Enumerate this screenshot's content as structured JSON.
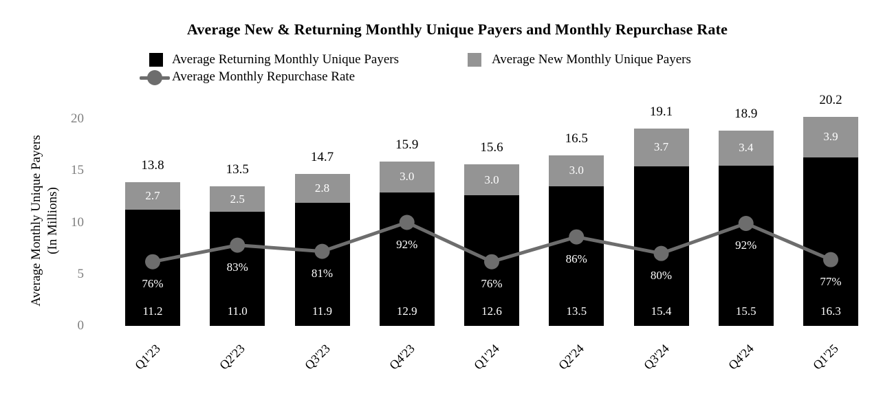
{
  "title": "Average New & Returning Monthly Unique Payers and Monthly Repurchase Rate",
  "legend": {
    "position": "top-left, two rows",
    "items": [
      {
        "label": "Average Returning Monthly Unique Payers",
        "swatch": "black-square"
      },
      {
        "label": "Average New Monthly Unique Payers",
        "swatch": "gray-square"
      },
      {
        "label": "Average Monthly Repurchase Rate",
        "swatch": "gray-line-with-circle-marker"
      }
    ]
  },
  "y_axis": {
    "title_line1": "Average Monthly Unique Payers",
    "title_line2": "(In Millions)",
    "ticks": [
      20,
      15,
      10,
      5,
      0
    ]
  },
  "colors": {
    "returning_bar": "#000000",
    "new_bar": "#949494",
    "line": "#6d6d6d",
    "tick_text": "#7f7f7f",
    "on_bar_text": "#ffffff",
    "text": "#000000",
    "background": "#ffffff"
  },
  "chart_data": {
    "type": "bar",
    "subtype": "stacked-bars-with-line-overlay",
    "title": "Average New & Returning Monthly Unique Payers and Monthly Repurchase Rate",
    "xlabel": "",
    "ylabel": "Average Monthly Unique Payers (In Millions)",
    "ylim": [
      0,
      20
    ],
    "grid": false,
    "legend_position": "top",
    "categories": [
      "Q1'23",
      "Q2'23",
      "Q3'23",
      "Q4'23",
      "Q1'24",
      "Q2'24",
      "Q3'24",
      "Q4'24",
      "Q1'25"
    ],
    "series": [
      {
        "name": "Average Returning Monthly Unique Payers",
        "type": "bar-stack-bottom",
        "values": [
          11.2,
          11.0,
          11.9,
          12.9,
          12.6,
          13.5,
          15.4,
          15.5,
          16.3
        ],
        "labels": [
          "11.2",
          "11.0",
          "11.9",
          "12.9",
          "12.6",
          "13.5",
          "15.4",
          "15.5",
          "16.3"
        ]
      },
      {
        "name": "Average New Monthly Unique Payers",
        "type": "bar-stack-top",
        "values": [
          2.7,
          2.5,
          2.8,
          3.0,
          3.0,
          3.0,
          3.7,
          3.4,
          3.9
        ],
        "labels": [
          "2.7",
          "2.5",
          "2.8",
          "3.0",
          "3.0",
          "3.0",
          "3.7",
          "3.4",
          "3.9"
        ]
      },
      {
        "name": "Average Monthly Repurchase Rate",
        "type": "line",
        "values_pct": [
          76,
          83,
          81,
          92,
          76,
          86,
          80,
          92,
          77
        ],
        "labels": [
          "76%",
          "83%",
          "81%",
          "92%",
          "76%",
          "86%",
          "80%",
          "92%",
          "77%"
        ],
        "marker_heights_on_left_axis": [
          6.2,
          7.8,
          7.2,
          10.0,
          6.2,
          8.6,
          7.0,
          9.9,
          6.4
        ]
      }
    ],
    "totals": [
      "13.8",
      "13.5",
      "14.7",
      "15.9",
      "15.6",
      "16.5",
      "19.1",
      "18.9",
      "20.2"
    ]
  }
}
